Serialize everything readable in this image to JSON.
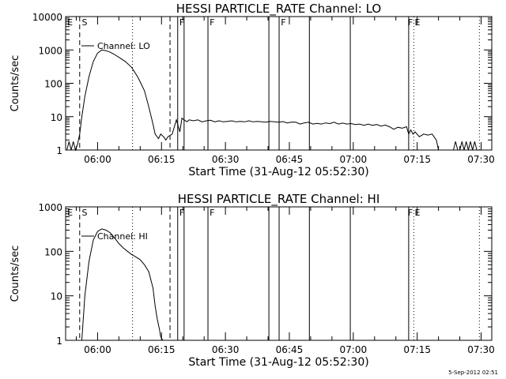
{
  "footer_timestamp": "5-Sep-2012 02:51",
  "colors": {
    "background": "#ffffff",
    "foreground": "#000000"
  },
  "chart_data": [
    {
      "type": "line",
      "title": "HESSI PARTICLE_RATE Channel: LO",
      "xlabel": "Start Time (31-Aug-12 05:52:30)",
      "ylabel": "Counts/sec",
      "y_scale": "log",
      "ylim": [
        1,
        10000
      ],
      "y_ticks": [
        {
          "value": 1,
          "label": "1"
        },
        {
          "value": 10,
          "label": "10"
        },
        {
          "value": 100,
          "label": "100"
        },
        {
          "value": 1000,
          "label": "1000"
        },
        {
          "value": 10000,
          "label": "10000"
        }
      ],
      "x_unit": "minutes after 05:52:30",
      "xlim": [
        0,
        100
      ],
      "x_ticks": [
        {
          "value": 7.5,
          "label": "06:00"
        },
        {
          "value": 22.5,
          "label": "06:15"
        },
        {
          "value": 37.5,
          "label": "06:30"
        },
        {
          "value": 52.5,
          "label": "06:45"
        },
        {
          "value": 67.5,
          "label": "07:00"
        },
        {
          "value": 82.5,
          "label": "07:15"
        },
        {
          "value": 97.5,
          "label": "07:30"
        }
      ],
      "series": [
        {
          "name": "Channel: LO",
          "x": [
            0.3,
            0.8,
            1.3,
            1.8,
            2.3,
            2.8,
            3.3,
            3.8,
            4.5,
            5.5,
            6.5,
            7.5,
            8.5,
            9.5,
            10.5,
            11.3,
            12.5,
            14,
            15.5,
            17,
            18.5,
            19.5,
            20.5,
            21,
            21.8,
            22.3,
            23,
            23.5,
            24,
            25,
            26,
            26.8,
            27.3,
            27.8,
            28.5,
            29,
            30,
            31,
            32,
            33,
            34,
            35,
            36,
            37,
            38,
            39,
            40,
            41,
            42,
            43,
            44,
            45,
            46,
            47,
            48,
            49,
            50,
            51,
            52,
            53,
            54,
            55,
            56,
            57,
            58,
            59,
            60,
            61,
            62,
            63,
            64,
            65,
            66,
            67,
            68,
            69,
            70,
            71,
            72,
            73,
            74,
            75,
            76,
            77,
            78,
            79,
            80,
            80.5,
            81,
            81.5,
            82,
            83,
            84,
            85,
            86,
            87,
            87.5
          ],
          "y": [
            1,
            1.8,
            1,
            1.8,
            1,
            1.5,
            3,
            10,
            40,
            160,
            450,
            800,
            1000,
            950,
            850,
            750,
            600,
            450,
            300,
            150,
            60,
            20,
            6,
            3,
            2.2,
            3,
            2.5,
            2,
            2.5,
            3,
            8,
            3.5,
            9,
            8,
            7,
            8,
            7.5,
            8,
            7,
            7.5,
            7.8,
            7,
            7.5,
            7,
            7.2,
            7.5,
            7,
            7.2,
            7,
            7.5,
            7,
            7.2,
            7,
            6.8,
            7.2,
            7,
            6.8,
            7.1,
            6.5,
            6.9,
            6.8,
            6,
            6.5,
            6.8,
            6,
            6.3,
            6,
            6.5,
            6.2,
            6.8,
            6,
            6.4,
            6,
            6.2,
            5.8,
            6,
            5.5,
            6,
            5.5,
            5.8,
            5.2,
            5.6,
            5,
            4.2,
            4.8,
            4.5,
            5,
            3,
            4,
            3,
            3.5,
            2.5,
            3,
            2.8,
            3,
            2,
            1
          ]
        },
        {
          "name": "",
          "x": [
            91,
            91.5,
            92,
            92.5,
            93,
            93.5,
            94,
            94.5,
            95,
            95.5,
            96,
            96.5,
            97
          ],
          "y": [
            1,
            1.8,
            1,
            1,
            1.8,
            1,
            1.8,
            1,
            1.8,
            1,
            1.8,
            1,
            1
          ]
        }
      ],
      "annotations": {
        "dashed_lines_x": [
          3.3,
          24.5
        ],
        "dotted_lines_x": [
          15.7,
          81.7,
          97.1
        ],
        "solid_lines_x": [
          26.3,
          27.8,
          33.4,
          47.7,
          50.1,
          57.2,
          66.8,
          80.5
        ],
        "labels": [
          {
            "x": 0.4,
            "text": "E"
          },
          {
            "x": 3.8,
            "text": "S"
          },
          {
            "x": 26.7,
            "text": "F"
          },
          {
            "x": 33.8,
            "text": "F"
          },
          {
            "x": 50.5,
            "text": "F"
          },
          {
            "x": 80.3,
            "text": "F"
          },
          {
            "x": 81.9,
            "text": "E"
          }
        ]
      },
      "legend": {
        "label": "Channel: LO",
        "placement": "top-left"
      }
    },
    {
      "type": "line",
      "title": "HESSI PARTICLE_RATE Channel: HI",
      "xlabel": "Start Time (31-Aug-12 05:52:30)",
      "ylabel": "Counts/sec",
      "y_scale": "log",
      "ylim": [
        1,
        1000
      ],
      "y_ticks": [
        {
          "value": 1,
          "label": "1"
        },
        {
          "value": 10,
          "label": "10"
        },
        {
          "value": 100,
          "label": "100"
        },
        {
          "value": 1000,
          "label": "1000"
        }
      ],
      "x_unit": "minutes after 05:52:30",
      "xlim": [
        0,
        100
      ],
      "x_ticks": [
        {
          "value": 7.5,
          "label": "06:00"
        },
        {
          "value": 22.5,
          "label": "06:15"
        },
        {
          "value": 37.5,
          "label": "06:30"
        },
        {
          "value": 52.5,
          "label": "06:45"
        },
        {
          "value": 67.5,
          "label": "07:00"
        },
        {
          "value": 82.5,
          "label": "07:15"
        },
        {
          "value": 97.5,
          "label": "07:30"
        }
      ],
      "series": [
        {
          "name": "Channel: HI",
          "x": [
            3.8,
            4.5,
            5.5,
            6.5,
            7.5,
            8.5,
            9.5,
            10.5,
            11.5,
            12.5,
            13.5,
            14.5,
            15.5,
            16.5,
            17.5,
            18.5,
            19.5,
            20.5,
            21,
            21.5,
            22,
            22.3,
            22.8
          ],
          "y": [
            1,
            10,
            60,
            180,
            280,
            320,
            300,
            260,
            200,
            150,
            120,
            100,
            85,
            75,
            65,
            50,
            35,
            15,
            6,
            3,
            1.8,
            1.2,
            1
          ]
        }
      ],
      "annotations": {
        "dashed_lines_x": [
          3.3,
          24.5
        ],
        "dotted_lines_x": [
          15.7,
          81.7,
          97.1
        ],
        "solid_lines_x": [
          26.3,
          27.8,
          33.4,
          47.7,
          50.1,
          57.2,
          66.8,
          80.5
        ],
        "labels": [
          {
            "x": 0.4,
            "text": "E"
          },
          {
            "x": 3.8,
            "text": "S"
          },
          {
            "x": 26.7,
            "text": "F"
          },
          {
            "x": 33.8,
            "text": "F"
          },
          {
            "x": 80.3,
            "text": "F"
          },
          {
            "x": 81.9,
            "text": "E"
          }
        ]
      },
      "legend": {
        "label": "Channel: HI",
        "placement": "top-left"
      }
    }
  ]
}
